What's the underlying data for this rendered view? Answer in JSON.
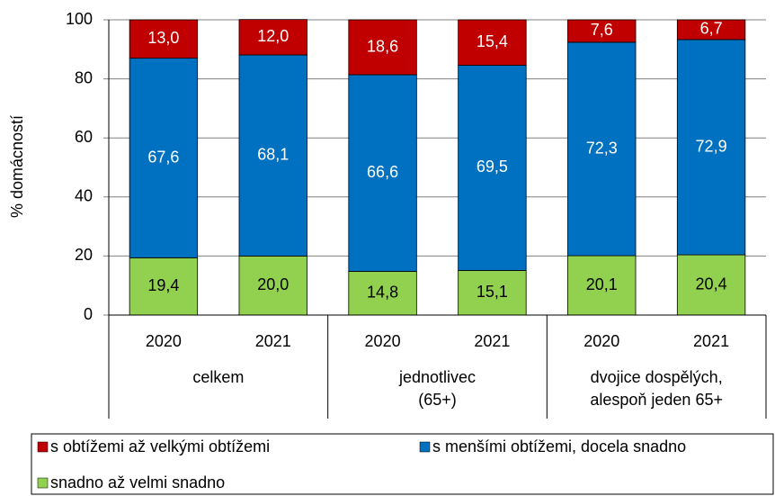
{
  "chart_data": {
    "type": "stacked-bar",
    "y_axis_label": "% domácností",
    "categories": [
      "2020",
      "2021",
      "2020",
      "2021",
      "2020",
      "2021"
    ],
    "groups": [
      [
        "celkem"
      ],
      [
        "jednotlivec",
        "(65+)"
      ],
      [
        "dvojice dospělých,",
        "alespoň jeden 65+"
      ]
    ],
    "series": [
      {
        "name": "snadno až velmi snadno",
        "color": "#92d050",
        "label_color": "#000000",
        "values": [
          19.4,
          20.0,
          14.8,
          15.1,
          20.1,
          20.4
        ],
        "value_labels": [
          "19,4",
          "20,0",
          "14,8",
          "15,1",
          "20,1",
          "20,4"
        ]
      },
      {
        "name": "s menšími obtížemi, docela snadno",
        "color": "#0070c0",
        "label_color": "#ffffff",
        "values": [
          67.6,
          68.1,
          66.6,
          69.5,
          72.3,
          72.9
        ],
        "value_labels": [
          "67,6",
          "68,1",
          "66,6",
          "69,5",
          "72,3",
          "72,9"
        ]
      },
      {
        "name": "s obtížemi až velkými obtížemi",
        "color": "#c00000",
        "label_color": "#ffffff",
        "values": [
          13.0,
          12.0,
          18.6,
          15.4,
          7.6,
          6.7
        ],
        "value_labels": [
          "13,0",
          "12,0",
          "18,6",
          "15,4",
          "7,6",
          "6,7"
        ]
      }
    ],
    "ylim": [
      0,
      100
    ],
    "yticks": [
      0,
      20,
      40,
      60,
      80,
      100
    ],
    "grid": true
  }
}
